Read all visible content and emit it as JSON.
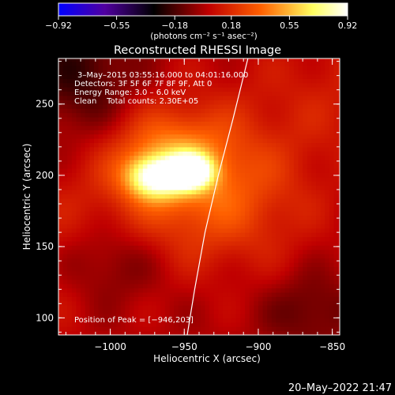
{
  "chart_data": {
    "type": "heatmap",
    "title": "Reconstructed RHESSI Image",
    "xlabel": "Heliocentric X (arcsec)",
    "ylabel": "Heliocentric Y (arcsec)",
    "xlim": [
      -1035,
      -845
    ],
    "ylim": [
      88,
      282
    ],
    "x_ticks": [
      -1000,
      -950,
      -900,
      -850
    ],
    "x_tick_labels": [
      "−1000",
      "−950",
      "−900",
      "−850"
    ],
    "y_ticks": [
      100,
      150,
      200,
      250
    ],
    "y_tick_labels": [
      "100",
      "150",
      "200",
      "250"
    ],
    "colorbar": {
      "range": [
        -0.92,
        0.92
      ],
      "ticks": [
        -0.92,
        -0.55,
        -0.18,
        0.18,
        0.55,
        0.92
      ],
      "tick_labels": [
        "−0.92",
        "−0.55",
        "−0.18",
        "0.18",
        "0.55",
        "0.92"
      ],
      "unit_label": "(photons cm⁻² s⁻¹ asec⁻²)",
      "colors": [
        "#0000ff",
        "#5000a0",
        "#000000",
        "#c00000",
        "#ff6000",
        "#ffff60",
        "#ffffff"
      ]
    },
    "annotations": [
      "3–May–2015 03:55:16.000 to 04:01:16.000",
      "Detectors: 3F 5F 6F 7F 8F 9F, Att 0",
      "Energy Range: 3.0 – 6.0 keV",
      "Clean    Total counts: 2.30E+05"
    ],
    "peak_label": "Position of Peak = [−946,203]",
    "peak": [
      -946,
      203
    ],
    "peak_value": 0.92,
    "sources": [
      {
        "x": -946,
        "y": 203,
        "amplitude": 0.92,
        "sx": 10,
        "sy": 8
      },
      {
        "x": -970,
        "y": 199,
        "amplitude": 0.65,
        "sx": 13,
        "sy": 10
      },
      {
        "x": -958,
        "y": 214,
        "amplitude": 0.35,
        "sx": 28,
        "sy": 22
      },
      {
        "x": -925,
        "y": 178,
        "amplitude": 0.22,
        "sx": 40,
        "sy": 30
      }
    ],
    "limb": [
      [
        -948,
        88
      ],
      [
        -943,
        120
      ],
      [
        -936,
        160
      ],
      [
        -927,
        200
      ],
      [
        -917,
        240
      ],
      [
        -907,
        282
      ]
    ],
    "grid": false
  },
  "footer": {
    "timestamp": "20–May–2022 21:47"
  }
}
